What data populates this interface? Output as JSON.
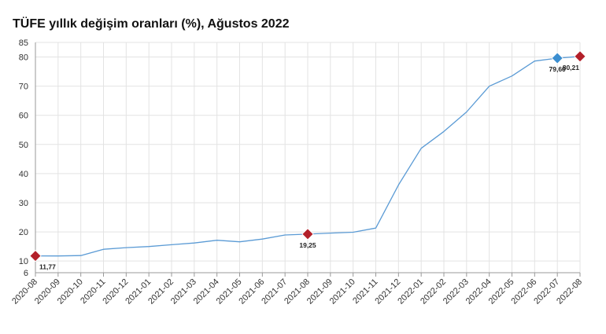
{
  "chart_data": {
    "type": "line",
    "title": "TÜFE yıllık değişim oranları (%), Ağustos 2022",
    "xlabel": "",
    "ylabel": "",
    "categories": [
      "2020-08",
      "2020-09",
      "2020-10",
      "2020-11",
      "2020-12",
      "2021-01",
      "2021-02",
      "2021-03",
      "2021-04",
      "2021-05",
      "2021-06",
      "2021-07",
      "2021-08",
      "2021-09",
      "2021-10",
      "2021-11",
      "2021-12",
      "2022-01",
      "2022-02",
      "2022-03",
      "2022-04",
      "2022-05",
      "2022-06",
      "2022-07",
      "2022-08"
    ],
    "series": [
      {
        "values": [
          11.77,
          11.75,
          11.89,
          14.03,
          14.6,
          14.97,
          15.61,
          16.19,
          17.14,
          16.59,
          17.53,
          18.95,
          19.25,
          19.58,
          19.89,
          21.31,
          36.08,
          48.69,
          54.44,
          61.14,
          69.97,
          73.5,
          78.62,
          79.6,
          80.21
        ]
      }
    ],
    "ylim": [
      6,
      85
    ],
    "yticks": [
      "6",
      "10",
      "20",
      "30",
      "40",
      "50",
      "60",
      "70",
      "80",
      "85"
    ],
    "grid": true,
    "line_color": "#5b9bd5",
    "marker_color_red": "#b3202a",
    "marker_color_blue": "#3b8ed0",
    "markers": [
      {
        "index": 0,
        "label": "11,77",
        "color": "red",
        "label_pos": "below-right"
      },
      {
        "index": 12,
        "label": "19,25",
        "color": "red",
        "label_pos": "below"
      },
      {
        "index": 23,
        "label": "79,60",
        "color": "blue",
        "label_pos": "below"
      },
      {
        "index": 24,
        "label": "80,21",
        "color": "red",
        "label_pos": "below-left"
      }
    ]
  }
}
